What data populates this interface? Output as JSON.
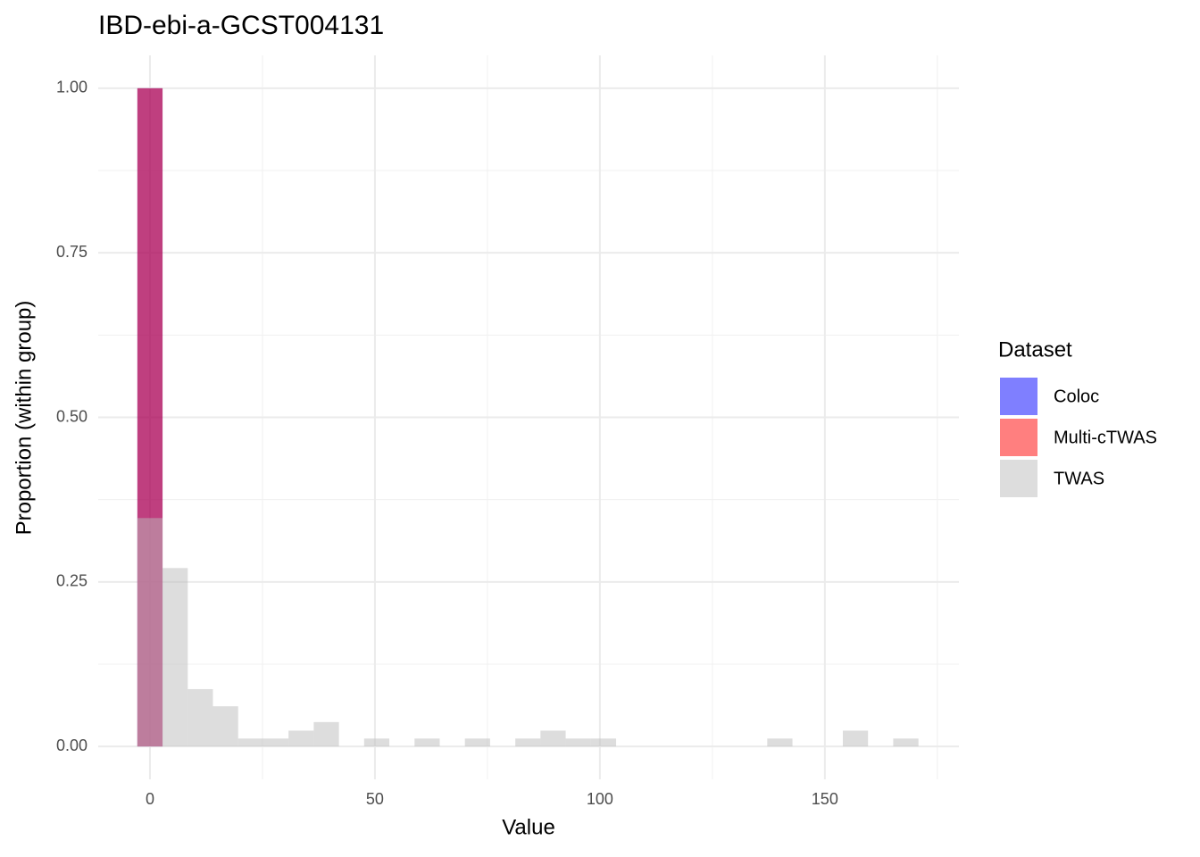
{
  "chart_data": {
    "type": "histogram",
    "title": "IBD-ebi-a-GCST004131",
    "x_label": "Value",
    "y_label": "Proportion (within group)",
    "legend_title": "Dataset",
    "legend": "right",
    "grid": true,
    "alpha": 0.5,
    "bins": [
      -2.8,
      2.8,
      8.4,
      14,
      19.6,
      25.2,
      30.8,
      36.4,
      42,
      47.6,
      53.2,
      58.8,
      64.4,
      70,
      75.6,
      81.2,
      86.8,
      92.4,
      98,
      103.6,
      109.2,
      114.8,
      120.4,
      126,
      131.6,
      137.2,
      142.8,
      148.4,
      154,
      159.6,
      165.2,
      170.8
    ],
    "series": [
      {
        "name": "Coloc",
        "color": "#0000ff",
        "values": [
          1,
          0,
          0,
          0,
          0,
          0,
          0,
          0,
          0,
          0,
          0,
          0,
          0,
          0,
          0,
          0,
          0,
          0,
          0,
          0,
          0,
          0,
          0,
          0,
          0,
          0,
          0,
          0,
          0,
          0,
          0
        ]
      },
      {
        "name": "Multi-cTWAS",
        "color": "#ff0000",
        "values": [
          1,
          0,
          0,
          0,
          0,
          0,
          0,
          0,
          0,
          0,
          0,
          0,
          0,
          0,
          0,
          0,
          0,
          0,
          0,
          0,
          0,
          0,
          0,
          0,
          0,
          0,
          0,
          0,
          0,
          0,
          0
        ]
      },
      {
        "name": "TWAS",
        "color": "#bbbbbb",
        "values": [
          0.347,
          0.271,
          0.087,
          0.061,
          0.012,
          0.012,
          0.024,
          0.037,
          0,
          0.012,
          0,
          0.012,
          0,
          0.012,
          0,
          0.012,
          0.024,
          0.012,
          0.012,
          0,
          0,
          0,
          0,
          0,
          0,
          0.012,
          0,
          0,
          0.024,
          0,
          0.012
        ]
      }
    ],
    "xlim": [
      -11.5,
      179.8
    ],
    "xticks": [
      0,
      50,
      100,
      150
    ],
    "xminor": [
      25,
      75,
      125,
      175
    ],
    "ylim": [
      -0.05,
      1.05
    ],
    "yticks": [
      {
        "value": 0,
        "label": "0.00"
      },
      {
        "value": 0.25,
        "label": "0.25"
      },
      {
        "value": 0.5,
        "label": "0.50"
      },
      {
        "value": 0.75,
        "label": "0.75"
      },
      {
        "value": 1,
        "label": "1.00"
      }
    ],
    "yminor": [
      0.125,
      0.375,
      0.625,
      0.875
    ]
  }
}
